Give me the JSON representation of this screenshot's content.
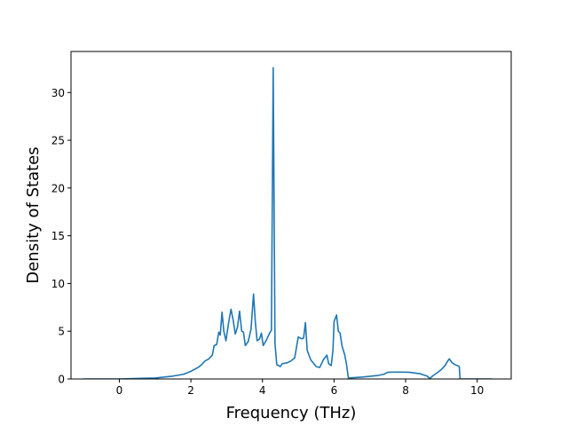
{
  "chart_data": {
    "type": "line",
    "title": "",
    "xlabel": "Frequency (THz)",
    "ylabel": "Density of States",
    "xlim": [
      -1.35,
      10.95
    ],
    "ylim": [
      0,
      34.3
    ],
    "xticks": [
      0,
      2,
      4,
      6,
      8,
      10
    ],
    "yticks": [
      0,
      5,
      10,
      15,
      20,
      25,
      30
    ],
    "grid": false,
    "legend": "none",
    "series": [
      {
        "color": "#1f77b4",
        "points": [
          [
            -1.0,
            0.0
          ],
          [
            0.0,
            0.0
          ],
          [
            0.5,
            0.05
          ],
          [
            1.0,
            0.1
          ],
          [
            1.5,
            0.3
          ],
          [
            1.8,
            0.5
          ],
          [
            2.0,
            0.8
          ],
          [
            2.2,
            1.2
          ],
          [
            2.3,
            1.5
          ],
          [
            2.4,
            1.9
          ],
          [
            2.5,
            2.1
          ],
          [
            2.6,
            2.5
          ],
          [
            2.65,
            3.5
          ],
          [
            2.72,
            3.6
          ],
          [
            2.78,
            4.9
          ],
          [
            2.82,
            4.6
          ],
          [
            2.87,
            7.0
          ],
          [
            2.92,
            5.0
          ],
          [
            2.98,
            4.0
          ],
          [
            3.05,
            5.8
          ],
          [
            3.12,
            7.3
          ],
          [
            3.18,
            6.2
          ],
          [
            3.24,
            4.7
          ],
          [
            3.3,
            5.4
          ],
          [
            3.36,
            7.1
          ],
          [
            3.42,
            5.0
          ],
          [
            3.47,
            4.9
          ],
          [
            3.52,
            3.5
          ],
          [
            3.6,
            3.9
          ],
          [
            3.68,
            5.2
          ],
          [
            3.75,
            8.9
          ],
          [
            3.8,
            6.0
          ],
          [
            3.85,
            4.0
          ],
          [
            3.92,
            4.2
          ],
          [
            3.97,
            4.8
          ],
          [
            4.02,
            3.5
          ],
          [
            4.1,
            4.0
          ],
          [
            4.2,
            4.8
          ],
          [
            4.25,
            5.1
          ],
          [
            4.3,
            32.6
          ],
          [
            4.35,
            3.7
          ],
          [
            4.4,
            1.5
          ],
          [
            4.5,
            1.3
          ],
          [
            4.55,
            1.6
          ],
          [
            4.7,
            1.7
          ],
          [
            4.8,
            1.9
          ],
          [
            4.9,
            2.2
          ],
          [
            5.0,
            4.4
          ],
          [
            5.1,
            4.2
          ],
          [
            5.15,
            4.3
          ],
          [
            5.2,
            5.9
          ],
          [
            5.25,
            3.0
          ],
          [
            5.35,
            2.0
          ],
          [
            5.5,
            1.3
          ],
          [
            5.6,
            1.2
          ],
          [
            5.7,
            2.0
          ],
          [
            5.8,
            2.5
          ],
          [
            5.85,
            1.6
          ],
          [
            5.92,
            1.4
          ],
          [
            5.97,
            3.0
          ],
          [
            6.0,
            6.0
          ],
          [
            6.07,
            6.7
          ],
          [
            6.12,
            5.0
          ],
          [
            6.17,
            4.8
          ],
          [
            6.22,
            3.5
          ],
          [
            6.3,
            2.5
          ],
          [
            6.35,
            1.5
          ],
          [
            6.4,
            0.1
          ],
          [
            6.8,
            0.2
          ],
          [
            7.2,
            0.35
          ],
          [
            7.4,
            0.5
          ],
          [
            7.5,
            0.7
          ],
          [
            7.8,
            0.72
          ],
          [
            8.1,
            0.7
          ],
          [
            8.4,
            0.55
          ],
          [
            8.6,
            0.3
          ],
          [
            8.68,
            0.05
          ],
          [
            8.75,
            0.3
          ],
          [
            8.9,
            0.7
          ],
          [
            9.0,
            1.0
          ],
          [
            9.1,
            1.4
          ],
          [
            9.18,
            1.9
          ],
          [
            9.22,
            2.1
          ],
          [
            9.3,
            1.7
          ],
          [
            9.38,
            1.5
          ],
          [
            9.45,
            1.4
          ],
          [
            9.5,
            1.3
          ],
          [
            9.52,
            0.0
          ],
          [
            10.0,
            0.0
          ],
          [
            10.4,
            0.0
          ]
        ]
      }
    ]
  }
}
